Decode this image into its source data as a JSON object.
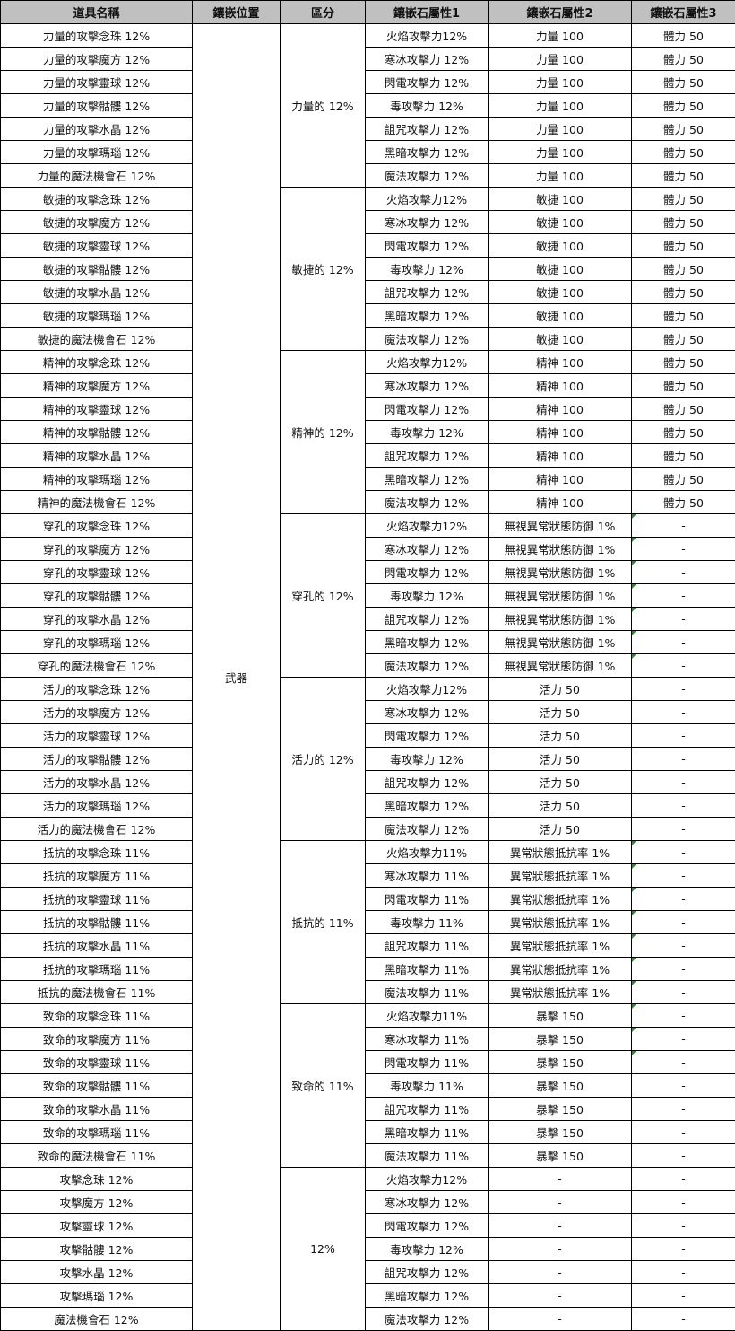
{
  "headers": [
    "道具名稱",
    "鑲嵌位置",
    "區分",
    "鑲嵌石屬性1",
    "鑲嵌石屬性2",
    "鑲嵌石屬性3"
  ],
  "slot": "武器",
  "note_marker_color": "#1a9a1a",
  "groups": [
    {
      "category": "力量的 12%",
      "note_rows": 0,
      "rows": [
        [
          "力量的攻擊念珠 12%",
          "火焰攻擊力12%",
          "力量 100",
          "體力 50"
        ],
        [
          "力量的攻擊魔方 12%",
          "寒冰攻擊力 12%",
          "力量 100",
          "體力 50"
        ],
        [
          "力量的攻擊靈球 12%",
          "閃電攻擊力 12%",
          "力量 100",
          "體力 50"
        ],
        [
          "力量的攻擊骷髏 12%",
          "毒攻擊力 12%",
          "力量 100",
          "體力 50"
        ],
        [
          "力量的攻擊水晶 12%",
          "詛咒攻擊力 12%",
          "力量 100",
          "體力 50"
        ],
        [
          "力量的攻擊瑪瑙 12%",
          "黑暗攻擊力 12%",
          "力量 100",
          "體力 50"
        ],
        [
          "力量的魔法機會石 12%",
          "魔法攻擊力 12%",
          "力量 100",
          "體力 50"
        ]
      ]
    },
    {
      "category": "敏捷的 12%",
      "note_rows": 0,
      "rows": [
        [
          "敏捷的攻擊念珠 12%",
          "火焰攻擊力12%",
          "敏捷 100",
          "體力 50"
        ],
        [
          "敏捷的攻擊魔方 12%",
          "寒冰攻擊力 12%",
          "敏捷 100",
          "體力 50"
        ],
        [
          "敏捷的攻擊靈球 12%",
          "閃電攻擊力 12%",
          "敏捷 100",
          "體力 50"
        ],
        [
          "敏捷的攻擊骷髏 12%",
          "毒攻擊力 12%",
          "敏捷 100",
          "體力 50"
        ],
        [
          "敏捷的攻擊水晶 12%",
          "詛咒攻擊力 12%",
          "敏捷 100",
          "體力 50"
        ],
        [
          "敏捷的攻擊瑪瑙 12%",
          "黑暗攻擊力 12%",
          "敏捷 100",
          "體力 50"
        ],
        [
          "敏捷的魔法機會石 12%",
          "魔法攻擊力 12%",
          "敏捷 100",
          "體力 50"
        ]
      ]
    },
    {
      "category": "精神的 12%",
      "note_rows": 0,
      "rows": [
        [
          "精神的攻擊念珠 12%",
          "火焰攻擊力12%",
          "精神 100",
          "體力 50"
        ],
        [
          "精神的攻擊魔方 12%",
          "寒冰攻擊力 12%",
          "精神 100",
          "體力 50"
        ],
        [
          "精神的攻擊靈球 12%",
          "閃電攻擊力 12%",
          "精神 100",
          "體力 50"
        ],
        [
          "精神的攻擊骷髏 12%",
          "毒攻擊力 12%",
          "精神 100",
          "體力 50"
        ],
        [
          "精神的攻擊水晶 12%",
          "詛咒攻擊力 12%",
          "精神 100",
          "體力 50"
        ],
        [
          "精神的攻擊瑪瑙 12%",
          "黑暗攻擊力 12%",
          "精神 100",
          "體力 50"
        ],
        [
          "精神的魔法機會石 12%",
          "魔法攻擊力 12%",
          "精神 100",
          "體力 50"
        ]
      ]
    },
    {
      "category": "穿孔的 12%",
      "note_rows": 7,
      "rows": [
        [
          "穿孔的攻擊念珠 12%",
          "火焰攻擊力12%",
          "無視異常狀態防御 1%",
          "-"
        ],
        [
          "穿孔的攻擊魔方 12%",
          "寒冰攻擊力 12%",
          "無視異常狀態防御 1%",
          "-"
        ],
        [
          "穿孔的攻擊靈球 12%",
          "閃電攻擊力 12%",
          "無視異常狀態防御 1%",
          "-"
        ],
        [
          "穿孔的攻擊骷髏 12%",
          "毒攻擊力 12%",
          "無視異常狀態防御 1%",
          "-"
        ],
        [
          "穿孔的攻擊水晶 12%",
          "詛咒攻擊力 12%",
          "無視異常狀態防御 1%",
          "-"
        ],
        [
          "穿孔的攻擊瑪瑙 12%",
          "黑暗攻擊力 12%",
          "無視異常狀態防御 1%",
          "-"
        ],
        [
          "穿孔的魔法機會石 12%",
          "魔法攻擊力 12%",
          "無視異常狀態防御 1%",
          "-"
        ]
      ]
    },
    {
      "category": "活力的 12%",
      "note_rows": 0,
      "rows": [
        [
          "活力的攻擊念珠 12%",
          "火焰攻擊力12%",
          "活力 50",
          "-"
        ],
        [
          "活力的攻擊魔方 12%",
          "寒冰攻擊力 12%",
          "活力 50",
          "-"
        ],
        [
          "活力的攻擊靈球 12%",
          "閃電攻擊力 12%",
          "活力 50",
          "-"
        ],
        [
          "活力的攻擊骷髏 12%",
          "毒攻擊力 12%",
          "活力 50",
          "-"
        ],
        [
          "活力的攻擊水晶 12%",
          "詛咒攻擊力 12%",
          "活力 50",
          "-"
        ],
        [
          "活力的攻擊瑪瑙 12%",
          "黑暗攻擊力 12%",
          "活力 50",
          "-"
        ],
        [
          "活力的魔法機會石 12%",
          "魔法攻擊力 12%",
          "活力 50",
          "-"
        ]
      ]
    },
    {
      "category": "抵抗的 11%",
      "note_rows": 7,
      "rows": [
        [
          "抵抗的攻擊念珠 11%",
          "火焰攻擊力11%",
          "異常狀態抵抗率 1%",
          "-"
        ],
        [
          "抵抗的攻擊魔方 11%",
          "寒冰攻擊力 11%",
          "異常狀態抵抗率 1%",
          "-"
        ],
        [
          "抵抗的攻擊靈球 11%",
          "閃電攻擊力 11%",
          "異常狀態抵抗率 1%",
          "-"
        ],
        [
          "抵抗的攻擊骷髏 11%",
          "毒攻擊力 11%",
          "異常狀態抵抗率 1%",
          "-"
        ],
        [
          "抵抗的攻擊水晶 11%",
          "詛咒攻擊力 11%",
          "異常狀態抵抗率 1%",
          "-"
        ],
        [
          "抵抗的攻擊瑪瑙 11%",
          "黑暗攻擊力 11%",
          "異常狀態抵抗率 1%",
          "-"
        ],
        [
          "抵抗的魔法機會石 11%",
          "魔法攻擊力 11%",
          "異常狀態抵抗率 1%",
          "-"
        ]
      ]
    },
    {
      "category": "致命的 11%",
      "note_rows": 3,
      "rows": [
        [
          "致命的攻擊念珠 11%",
          "火焰攻擊力11%",
          "暴擊 150",
          "-"
        ],
        [
          "致命的攻擊魔方 11%",
          "寒冰攻擊力 11%",
          "暴擊 150",
          "-"
        ],
        [
          "致命的攻擊靈球 11%",
          "閃電攻擊力 11%",
          "暴擊 150",
          "-"
        ],
        [
          "致命的攻擊骷髏 11%",
          "毒攻擊力 11%",
          "暴擊 150",
          "-"
        ],
        [
          "致命的攻擊水晶 11%",
          "詛咒攻擊力 11%",
          "暴擊 150",
          "-"
        ],
        [
          "致命的攻擊瑪瑙 11%",
          "黑暗攻擊力 11%",
          "暴擊 150",
          "-"
        ],
        [
          "致命的魔法機會石 11%",
          "魔法攻擊力 11%",
          "暴擊 150",
          "-"
        ]
      ]
    },
    {
      "category": "12%",
      "note_rows": 0,
      "rows": [
        [
          "攻擊念珠 12%",
          "火焰攻擊力12%",
          "-",
          "-"
        ],
        [
          "攻擊魔方 12%",
          "寒冰攻擊力 12%",
          "-",
          "-"
        ],
        [
          "攻擊靈球 12%",
          "閃電攻擊力 12%",
          "-",
          "-"
        ],
        [
          "攻擊骷髏 12%",
          "毒攻擊力 12%",
          "-",
          "-"
        ],
        [
          "攻擊水晶 12%",
          "詛咒攻擊力 12%",
          "-",
          "-"
        ],
        [
          "攻擊瑪瑙 12%",
          "黑暗攻擊力 12%",
          "-",
          "-"
        ],
        [
          "魔法機會石 12%",
          "魔法攻擊力 12%",
          "-",
          "-"
        ]
      ]
    }
  ]
}
